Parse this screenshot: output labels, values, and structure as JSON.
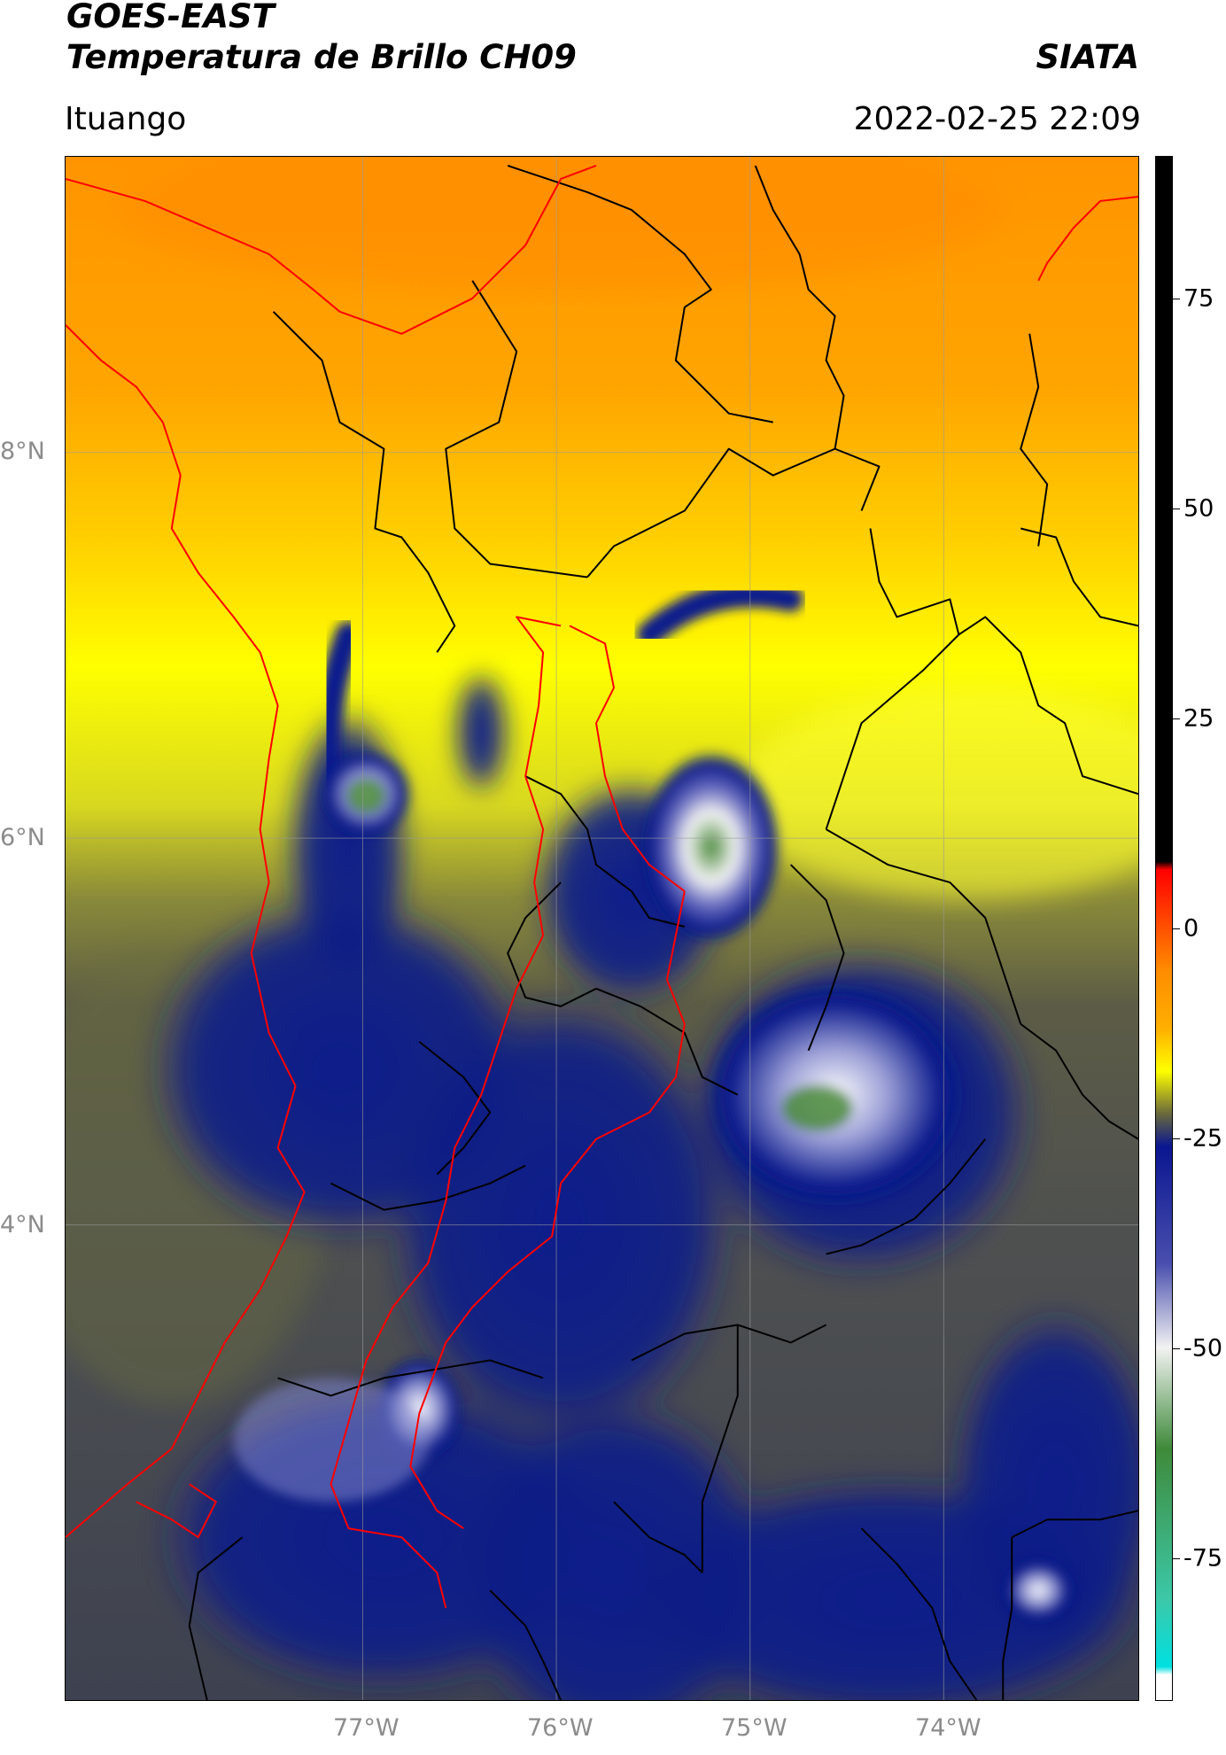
{
  "header": {
    "line1": "GOES-EAST",
    "line2": "Temperatura de Brillo CH09",
    "org": "SIATA",
    "place": "Ituango",
    "datetime": "2022-02-25 22:09"
  },
  "axes": {
    "lat_ticks": [
      "8°N",
      "6°N",
      "4°N"
    ],
    "lon_ticks": [
      "77°W",
      "76°W",
      "75°W",
      "74°W"
    ]
  },
  "colorbar": {
    "ticks": [
      "75",
      "50",
      "25",
      "0",
      "-25",
      "-50",
      "-75"
    ],
    "stops": [
      {
        "value": 90,
        "color": "#000000"
      },
      {
        "value": 8,
        "color": "#000000"
      },
      {
        "value": 7,
        "color": "#ff0000"
      },
      {
        "value": -5,
        "color": "#ff8c00"
      },
      {
        "value": -12,
        "color": "#ffb000"
      },
      {
        "value": -17,
        "color": "#ffff00"
      },
      {
        "value": -22,
        "color": "#6b6b3a"
      },
      {
        "value": -26,
        "color": "#0a1690"
      },
      {
        "value": -40,
        "color": "#4a4fae"
      },
      {
        "value": -50,
        "color": "#f2f2f2"
      },
      {
        "value": -62,
        "color": "#3f8a3a"
      },
      {
        "value": -80,
        "color": "#3cc8a8"
      },
      {
        "value": -88,
        "color": "#00e0e0"
      },
      {
        "value": -89,
        "color": "#ffffff"
      },
      {
        "value": -92,
        "color": "#ffffff"
      }
    ]
  },
  "map_colors": {
    "warm_orange": "#ff9a00",
    "yellow": "#ffff00",
    "olive": "#5a5a46",
    "deep_blue": "#0a1a8c",
    "white": "#ffffff",
    "green": "#4a8a3a",
    "boundary_red": "#ff0000",
    "boundary_black": "#000000"
  }
}
